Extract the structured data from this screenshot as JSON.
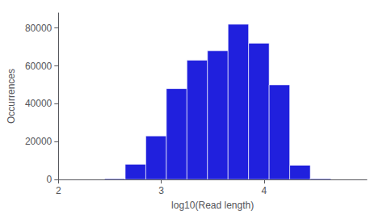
{
  "chart_data": {
    "type": "histogram",
    "xlabel": "log10(Read length)",
    "ylabel": "Occurrences",
    "bins": [
      2.45,
      2.65,
      2.85,
      3.05,
      3.25,
      3.45,
      3.65,
      3.85,
      4.05,
      4.25,
      4.45,
      4.65
    ],
    "values": [
      400,
      8000,
      23000,
      48000,
      63000,
      68000,
      82000,
      72000,
      50000,
      7500,
      400
    ],
    "color": "#2020DD",
    "xlim": [
      2,
      5
    ],
    "xticks": [
      2,
      3,
      4
    ],
    "ylim": [
      0,
      88000
    ],
    "yticks": [
      0,
      20000,
      40000,
      60000,
      80000
    ],
    "grid": false
  }
}
